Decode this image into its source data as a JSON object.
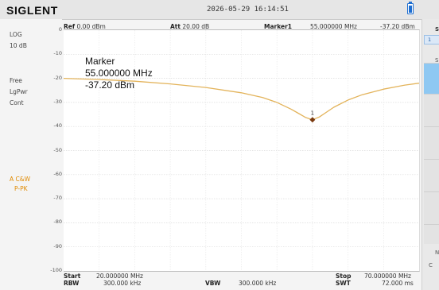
{
  "header": {
    "brand": "SIGLENT",
    "datetime": "2026-05-29  16:14:51"
  },
  "left_panel": {
    "scale_type": "LOG",
    "scale_div": "10 dB",
    "trigger": "Free",
    "detector": "LgPwr",
    "sweep_mode": "Cont",
    "trace_a": "A C&W",
    "trace_b": "P-PK"
  },
  "graph_header": {
    "ref_label": "Ref",
    "ref_value": "0.00 dBm",
    "att_label": "Att",
    "att_value": "20.00 dB",
    "marker_label": "Marker1",
    "marker_freq": "55.000000 MHz",
    "marker_level": "-37.20 dBm"
  },
  "y_axis": {
    "ticks": [
      "0",
      "-10",
      "-20",
      "-30",
      "-40",
      "-50",
      "-60",
      "-70",
      "-80",
      "-90",
      "-100"
    ]
  },
  "marker_readout": {
    "title": "Marker",
    "frequency": "55.000000 MHz",
    "level": "-37.20 dBm",
    "marker_number": "1"
  },
  "bottom_bar": {
    "start_label": "Start",
    "start_value": "20.000000 MHz",
    "rbw_label": "RBW",
    "rbw_value": "300.000 kHz",
    "vbw_label": "VBW",
    "vbw_value": "300.000 kHz",
    "stop_label": "Stop",
    "stop_value": "70.000000 MHz",
    "swt_label": "SWT",
    "swt_value": "72.000 ms"
  },
  "right_panel": {
    "title": "S",
    "selected_marker": "1",
    "label2": "S",
    "label3": "N",
    "label4": "C"
  },
  "colors": {
    "trace": "#e3b35a",
    "marker": "#7a3a10",
    "accent": "#e08a00",
    "highlight": "#8ec8f2"
  },
  "chart_data": {
    "type": "line",
    "x_unit": "MHz",
    "y_unit": "dBm",
    "xlim": [
      20,
      70
    ],
    "ylim": [
      -100,
      0
    ],
    "grid": true,
    "series": [
      {
        "x": [
          20,
          25,
          30,
          35,
          40,
          45,
          48,
          50,
          52,
          53,
          54,
          55,
          56,
          57,
          58,
          60,
          62,
          65,
          68,
          70
        ],
        "values": [
          -20.0,
          -20.5,
          -21.2,
          -22.3,
          -23.8,
          -26.0,
          -28.0,
          -30.0,
          -32.8,
          -34.5,
          -36.2,
          -37.2,
          -36.0,
          -34.0,
          -32.0,
          -29.0,
          -26.8,
          -24.5,
          -22.8,
          -22.0
        ]
      }
    ]
  }
}
